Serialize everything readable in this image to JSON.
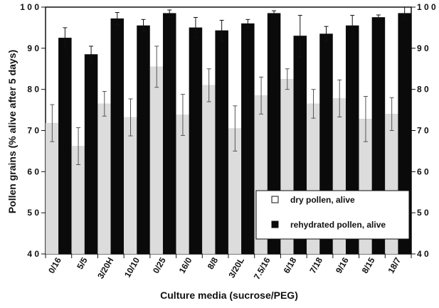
{
  "chart_data": {
    "type": "bar",
    "xlabel": "Culture media (sucrose/PEG)",
    "ylabel": "Pollen grains (% alive after 5 days)",
    "ylim": [
      40,
      100
    ],
    "yticks": [
      40,
      50,
      60,
      70,
      80,
      90,
      100
    ],
    "ytick_labels": [
      "4 0",
      "5 0",
      "6 0",
      "7 0",
      "8 0",
      "9 0",
      "1 0 0"
    ],
    "categories": [
      "0/16",
      "5/5",
      "3/20H",
      "10/10",
      "0/25",
      "16/0",
      "8/8",
      "3/20L",
      "7.5/16",
      "6/18",
      "7/18",
      "9/16",
      "8/15",
      "18/7"
    ],
    "series": [
      {
        "name": "dry pollen, alive",
        "color": "#dcdcdc",
        "values": [
          71.8,
          66.2,
          76.5,
          73.2,
          85.5,
          73.8,
          81.0,
          70.5,
          78.5,
          82.5,
          76.5,
          77.8,
          72.8,
          74.0
        ],
        "errors": [
          4.5,
          4.5,
          3.0,
          4.5,
          5.0,
          5.0,
          4.0,
          5.5,
          4.5,
          2.5,
          3.5,
          4.5,
          5.5,
          4.0
        ]
      },
      {
        "name": "rehydrated pollen, alive",
        "color": "#0a0a0a",
        "values": [
          92.5,
          88.5,
          97.2,
          95.5,
          98.5,
          95.0,
          94.3,
          96.0,
          98.5,
          93.0,
          93.5,
          95.5,
          97.5,
          98.5
        ],
        "errors": [
          2.5,
          2.0,
          1.5,
          1.5,
          0.8,
          2.5,
          2.5,
          1.0,
          0.6,
          5.0,
          1.8,
          2.5,
          0.6,
          1.5
        ]
      }
    ],
    "legend": {
      "position": "bottom-right",
      "entries": [
        "dry pollen, alive",
        "rehydrated pollen, alive"
      ]
    },
    "grid": false
  }
}
